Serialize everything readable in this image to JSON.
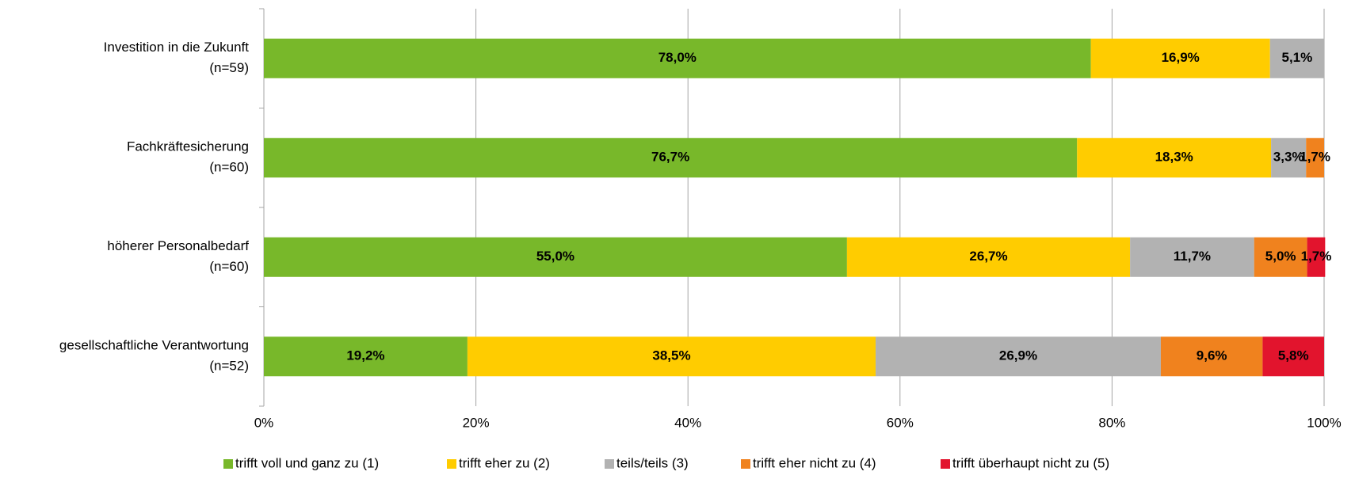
{
  "chart_data": {
    "type": "stacked-barh",
    "categories": [
      [
        "Investition in die Zukunft",
        "(n=59)"
      ],
      [
        "Fachkräftesicherung",
        "(n=60)"
      ],
      [
        "höherer Personalbedarf",
        "(n=60)"
      ],
      [
        "gesellschaftliche Verantwortung",
        "(n=52)"
      ]
    ],
    "series": [
      {
        "name": "trifft voll und ganz zu (1)",
        "color": "#78b82a",
        "values": [
          78.0,
          76.7,
          55.0,
          19.2
        ],
        "value_labels": [
          "78,0%",
          "76,7%",
          "55,0%",
          "19,2%"
        ]
      },
      {
        "name": "trifft eher zu (2)",
        "color": "#ffcc00",
        "values": [
          16.9,
          18.3,
          26.7,
          38.5
        ],
        "value_labels": [
          "16,9%",
          "18,3%",
          "26,7%",
          "38,5%"
        ]
      },
      {
        "name": "teils/teils (3)",
        "color": "#b2b2b2",
        "values": [
          5.1,
          3.3,
          11.7,
          26.9
        ],
        "value_labels": [
          "5,1%",
          "3,3%",
          "11,7%",
          "26,9%"
        ]
      },
      {
        "name": "trifft eher nicht zu (4)",
        "color": "#f0821e",
        "values": [
          null,
          1.7,
          5.0,
          9.6
        ],
        "value_labels": [
          null,
          "1,7%",
          "5,0%",
          "9,6%"
        ]
      },
      {
        "name": "trifft überhaupt nicht zu (5)",
        "color": "#e2142d",
        "values": [
          null,
          null,
          1.7,
          5.8
        ],
        "value_labels": [
          null,
          null,
          "1,7%",
          "5,8%"
        ]
      }
    ],
    "xlim": [
      0,
      100
    ],
    "xticks": [
      {
        "value": 0,
        "label": "0%"
      },
      {
        "value": 20,
        "label": "20%"
      },
      {
        "value": 40,
        "label": "40%"
      },
      {
        "value": 60,
        "label": "60%"
      },
      {
        "value": 80,
        "label": "80%"
      },
      {
        "value": 100,
        "label": "100%"
      }
    ],
    "grid": true,
    "legend": "bottom"
  }
}
